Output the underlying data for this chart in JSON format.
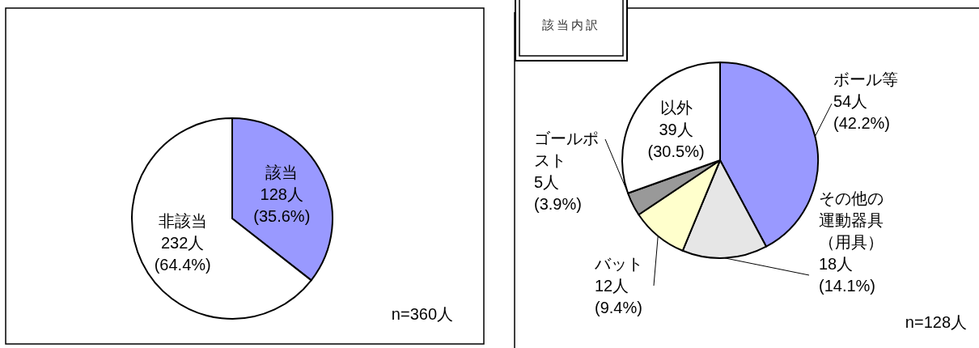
{
  "chart_data": [
    {
      "type": "pie",
      "categories": [
        "該当",
        "非該当"
      ],
      "values": [
        128,
        232
      ],
      "colors": [
        "#9999ff",
        "#ffffff"
      ],
      "value_labels": [
        "128人\n(35.6%)",
        "232人\n(64.4%)"
      ],
      "annotations": [
        "n=360人"
      ]
    },
    {
      "type": "pie",
      "title": "該当内訳",
      "categories": [
        "ボール等",
        "その他の運動器具（用具）",
        "バット",
        "ゴールポスト",
        "以外"
      ],
      "values": [
        54,
        18,
        12,
        5,
        39
      ],
      "colors": [
        "#9999ff",
        "#e6e6e6",
        "#ffffcc",
        "#999999",
        "#ffffff"
      ],
      "value_labels": [
        "54人\n(42.2%)",
        "18人\n(14.1%)",
        "12人\n(9.4%)",
        "5人\n(3.9%)",
        "39人\n(30.5%)"
      ],
      "annotations": [
        "n=128人"
      ]
    }
  ]
}
